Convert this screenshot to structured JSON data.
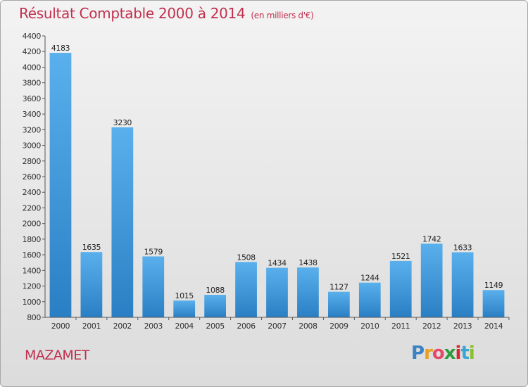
{
  "header": {
    "title": "Résultat Comptable 2000 à 2014",
    "unit_note": "(en milliers d'€)"
  },
  "city": "MAZAMET",
  "brand": {
    "letters": [
      "P",
      "r",
      "o",
      "x",
      "i",
      "t",
      "i"
    ],
    "colors": [
      "#3b82c4",
      "#e8a020",
      "#e34a6a",
      "#2c9c3c",
      "#d6262e",
      "#3aa6d8",
      "#8cbf2a"
    ]
  },
  "chart_data": {
    "type": "bar",
    "title": "Résultat Comptable 2000 à 2014",
    "subtitle": "(en milliers d'€)",
    "xlabel": "",
    "ylabel": "",
    "categories": [
      "2000",
      "2001",
      "2002",
      "2003",
      "2004",
      "2005",
      "2006",
      "2007",
      "2008",
      "2009",
      "2010",
      "2011",
      "2012",
      "2013",
      "2014"
    ],
    "values": [
      4183,
      1635,
      3230,
      1579,
      1015,
      1088,
      1508,
      1434,
      1438,
      1127,
      1244,
      1521,
      1742,
      1633,
      1149
    ],
    "ylim": [
      800,
      4400
    ],
    "ytick_step": 200,
    "grid": false,
    "bar_color": "#3a96de"
  }
}
